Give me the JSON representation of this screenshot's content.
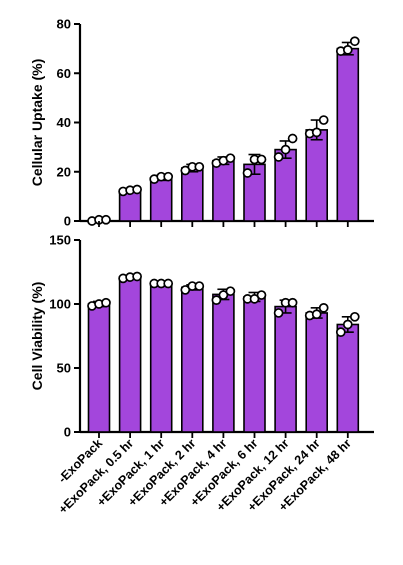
{
  "chart_data": [
    {
      "type": "bar",
      "ylabel": "Cellular Uptake  (%)",
      "ylim": [
        0,
        80
      ],
      "yticks": [
        0,
        20,
        40,
        60,
        80
      ],
      "categories": [
        "-ExoPack",
        "+ExoPack, 0.5 hr",
        "+ExoPack, 1 hr",
        "+ExoPack, 2 hr",
        "+ExoPack, 4 hr",
        "+ExoPack, 6 hr",
        "+ExoPack, 12 hr",
        "+ExoPack, 24 hr",
        "+ExoPack, 48 hr"
      ],
      "values": [
        0.5,
        12.5,
        17.5,
        21.5,
        24.5,
        23,
        29,
        37,
        70
      ],
      "error": [
        0.3,
        0.5,
        1,
        1.5,
        1.5,
        4,
        3.5,
        4,
        2.5
      ],
      "points": [
        [
          0,
          0.5,
          0.5
        ],
        [
          12,
          12.5,
          12.8
        ],
        [
          17,
          18,
          18
        ],
        [
          20.5,
          22,
          22
        ],
        [
          23.5,
          24.5,
          25.5
        ],
        [
          19.5,
          25,
          25
        ],
        [
          26,
          29,
          33.5
        ],
        [
          35.5,
          36,
          41
        ],
        [
          69,
          69.5,
          73
        ]
      ],
      "bar_color": "#A346DC",
      "x_tick_labels_shown": false
    },
    {
      "type": "bar",
      "ylabel": "Cell  Viability (%)",
      "ylim": [
        0,
        150
      ],
      "yticks": [
        0,
        50,
        100,
        150
      ],
      "categories": [
        "-ExoPack",
        "+ExoPack, 0.5 hr",
        "+ExoPack, 1 hr",
        "+ExoPack, 2 hr",
        "+ExoPack, 4 hr",
        "+ExoPack, 6 hr",
        "+ExoPack, 12 hr",
        "+ExoPack, 24 hr",
        "+ExoPack, 48 hr"
      ],
      "values": [
        100,
        121,
        116,
        113,
        107.5,
        105.5,
        98,
        93,
        84
      ],
      "error": [
        2,
        1.5,
        1,
        2,
        4,
        3.5,
        5,
        4,
        6
      ],
      "points": [
        [
          98.5,
          100,
          101
        ],
        [
          120,
          121,
          121.5
        ],
        [
          116,
          116,
          116
        ],
        [
          111,
          114,
          114
        ],
        [
          103,
          107,
          110
        ],
        [
          104,
          104,
          107
        ],
        [
          93,
          101,
          101
        ],
        [
          91,
          92,
          97
        ],
        [
          78,
          84,
          90
        ]
      ],
      "bar_color": "#A346DC",
      "x_tick_labels_shown": true
    }
  ]
}
